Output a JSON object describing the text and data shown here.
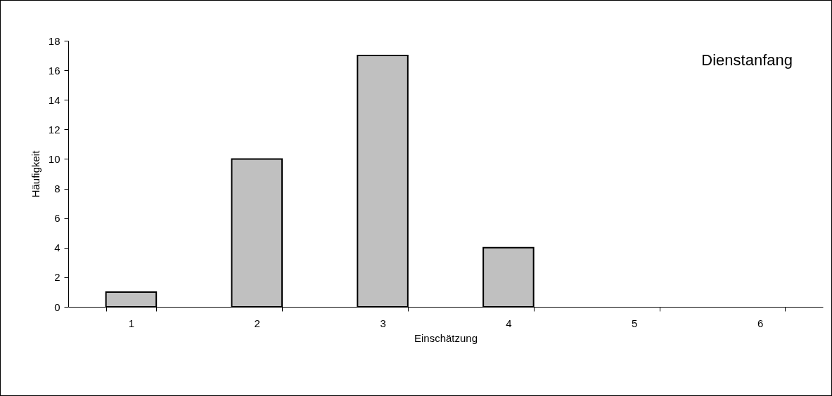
{
  "chart_data": {
    "type": "bar",
    "xlabel": "Einschätzung",
    "ylabel": "Häufigkeit",
    "categories": [
      "1",
      "2",
      "3",
      "4",
      "5",
      "6"
    ],
    "values": [
      1,
      10,
      17,
      4,
      0,
      0
    ],
    "color": "#c0c0c0",
    "ylim": [
      0,
      18
    ],
    "yticks": [
      0,
      2,
      4,
      6,
      8,
      10,
      12,
      14,
      16,
      18
    ],
    "grid": false,
    "annotations": [
      "Dienstanfang"
    ]
  }
}
